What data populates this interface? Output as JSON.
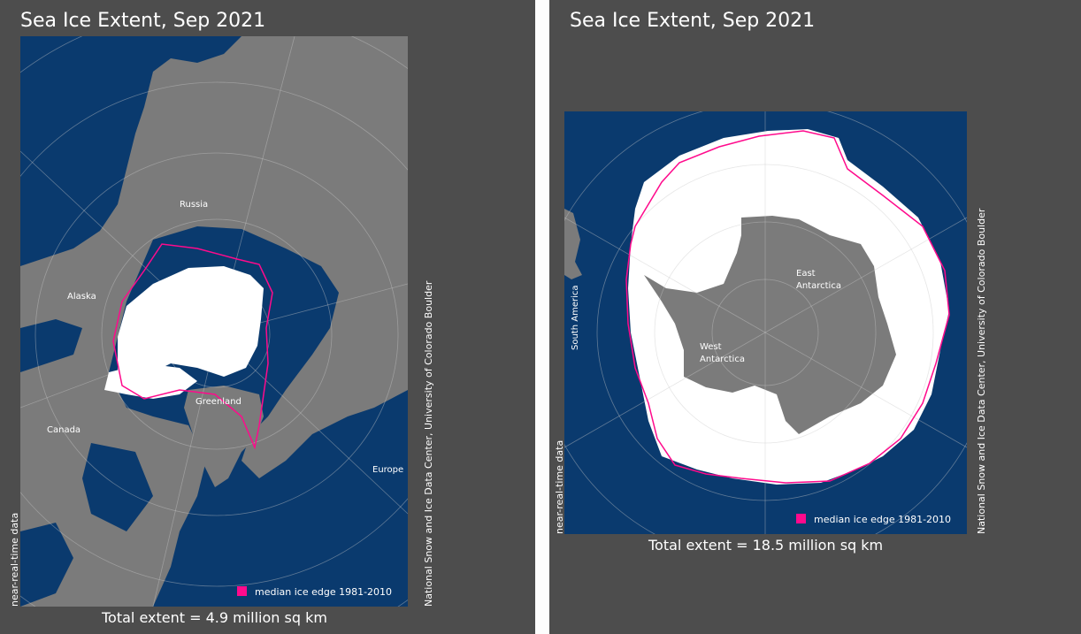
{
  "colors": {
    "background": "#4d4d4d",
    "ocean": "#0a3a6e",
    "land": "#7b7b7b",
    "ice": "#ffffff",
    "median_edge": "#ff0a8c",
    "divider": "#fdfdfd"
  },
  "left": {
    "title": "Sea Ice Extent, Sep 2021",
    "total": "Total extent = 4.9 million sq km",
    "source_note": "near-real-time data",
    "credit": "National Snow and Ice Data Center, University of Colorado Boulder",
    "legend": "median ice edge 1981-2010",
    "labels": {
      "russia": "Russia",
      "alaska": "Alaska",
      "canada": "Canada",
      "greenland": "Greenland",
      "europe": "Europe"
    }
  },
  "right": {
    "title": "Sea Ice Extent, Sep 2021",
    "total": "Total extent = 18.5 million sq km",
    "source_note": "near-real-time data",
    "credit": "National Snow and Ice Data Center, University of Colorado Boulder",
    "legend": "median ice edge 1981-2010",
    "labels": {
      "south_america": "South America",
      "east_1": "East",
      "east_2": "Antarctica",
      "west_1": "West",
      "west_2": "Antarctica"
    }
  }
}
